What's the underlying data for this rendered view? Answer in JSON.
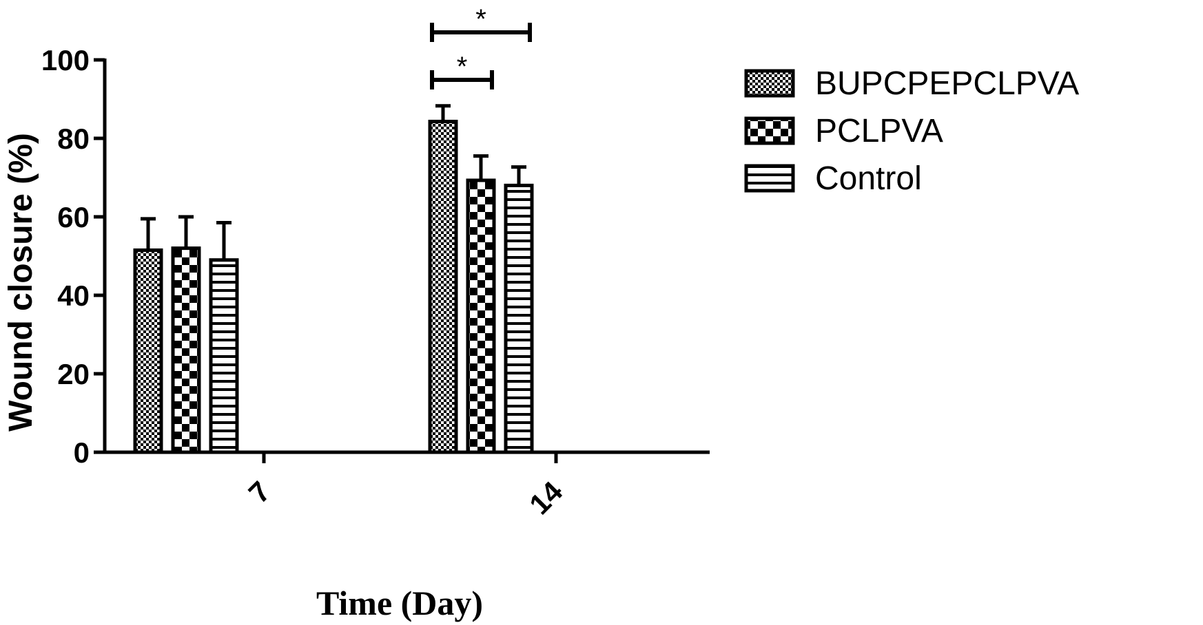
{
  "chart_data": {
    "type": "bar",
    "xlabel": "Time (Day)",
    "ylabel": "Wound closure (%)",
    "ylim": [
      0,
      100
    ],
    "yticks": [
      "0",
      "20",
      "40",
      "60",
      "80",
      "100"
    ],
    "categories": [
      "7",
      "14"
    ],
    "series": [
      {
        "name": "BUPCPEPCLPVA",
        "pattern": "fine-checker",
        "values": [
          51.5,
          84.3
        ],
        "errors": [
          8.0,
          4.0
        ]
      },
      {
        "name": "PCLPVA",
        "pattern": "coarse-checker",
        "values": [
          52.0,
          69.3
        ],
        "errors": [
          8.0,
          6.2
        ]
      },
      {
        "name": "Control",
        "pattern": "horizontal-stripes",
        "values": [
          49.0,
          68.0
        ],
        "errors": [
          9.5,
          4.7
        ]
      }
    ],
    "significance": [
      {
        "category": "14",
        "from_series": 0,
        "to_series": 1,
        "label": "*"
      },
      {
        "category": "14",
        "from_series": 0,
        "to_series": 2,
        "label": "*"
      }
    ],
    "legend_position": "top-right",
    "grid": false,
    "bar_fill": "#000000",
    "background": "#ffffff"
  }
}
